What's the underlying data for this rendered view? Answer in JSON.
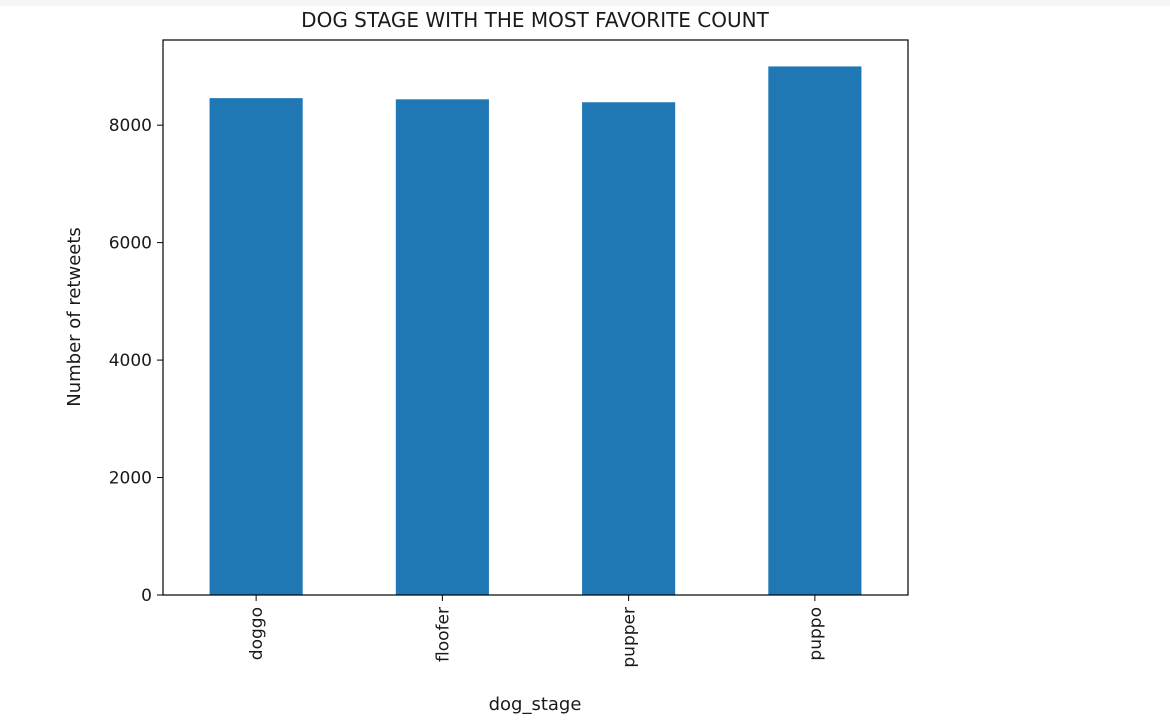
{
  "chart_data": {
    "type": "bar",
    "title": "DOG STAGE WITH THE MOST FAVORITE COUNT",
    "xlabel": "dog_stage",
    "ylabel": "Number of retweets",
    "categories": [
      "doggo",
      "floofer",
      "pupper",
      "puppo"
    ],
    "values": [
      8460,
      8440,
      8390,
      9000
    ],
    "ylim": [
      0,
      9450
    ],
    "yticks": [
      0,
      2000,
      4000,
      6000,
      8000
    ],
    "ytick_labels": [
      "0",
      "2000",
      "4000",
      "6000",
      "8000"
    ],
    "bar_color": "#1f77b4",
    "grid": false,
    "legend": "none"
  }
}
